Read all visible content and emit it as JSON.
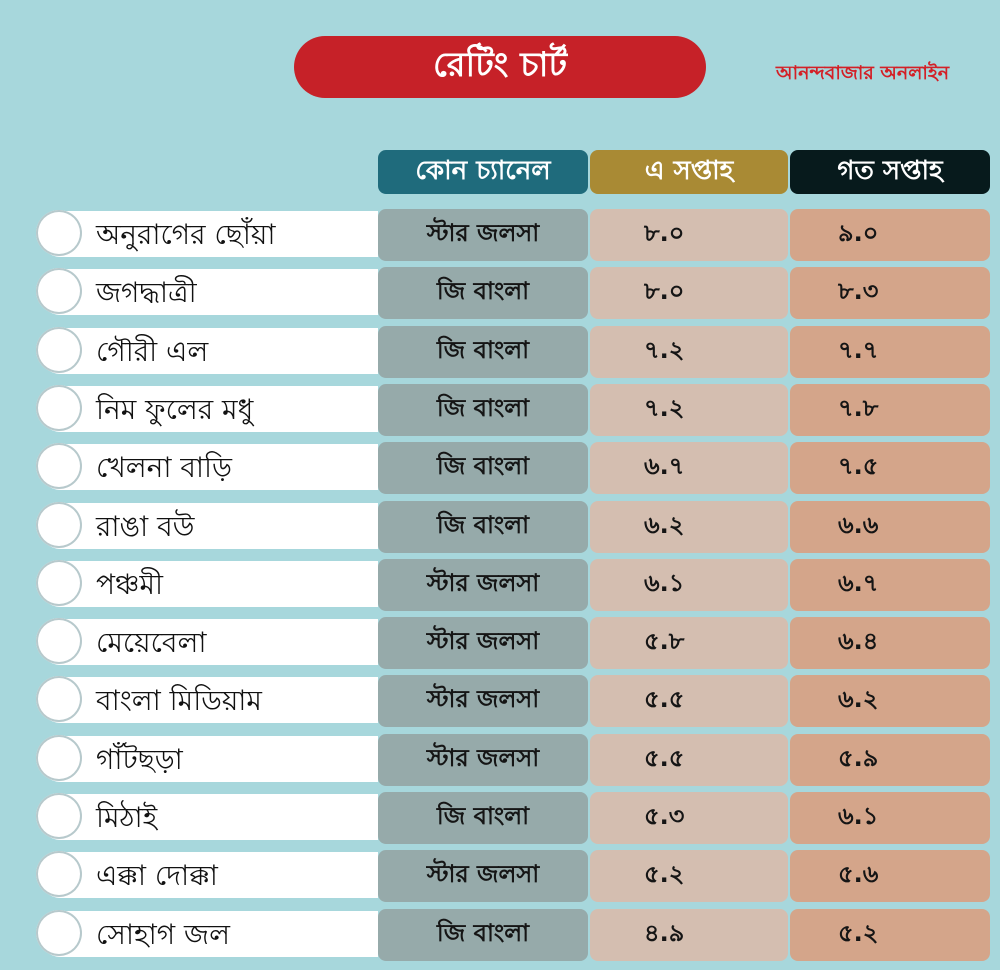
{
  "title": "রেটিং চার্ট",
  "brand": "আনন্দবাজার অনলাইন",
  "colors": {
    "background": "#a7d7dc",
    "title_pill": "#c62128",
    "brand_text": "#d32027",
    "header_channel": "#1f6b7c",
    "header_this_week": "#a98a34",
    "header_last_week": "#071a1c",
    "cell_channel": "#96aaaa",
    "cell_this_week": "#d4beb0",
    "cell_last_week": "#d4a58a"
  },
  "chart_data": {
    "type": "table",
    "columns": [
      "কোন চ্যানেল",
      "এ সপ্তাহ",
      "গত সপ্তাহ"
    ],
    "rows": [
      {
        "name": "অনুরাগের ছোঁয়া",
        "channel": "স্টার জলসা",
        "this_week": "৮.০",
        "last_week": "৯.০"
      },
      {
        "name": "জগদ্ধাত্রী",
        "channel": "জি বাংলা",
        "this_week": "৮.০",
        "last_week": "৮.৩"
      },
      {
        "name": "গৌরী এল",
        "channel": "জি বাংলা",
        "this_week": "৭.২",
        "last_week": "৭.৭"
      },
      {
        "name": "নিম ফুলের মধু",
        "channel": "জি বাংলা",
        "this_week": "৭.২",
        "last_week": "৭.৮"
      },
      {
        "name": "খেলনা বাড়ি",
        "channel": "জি বাংলা",
        "this_week": "৬.৭",
        "last_week": "৭.৫"
      },
      {
        "name": "রাঙা বউ",
        "channel": "জি বাংলা",
        "this_week": "৬.২",
        "last_week": "৬.৬"
      },
      {
        "name": "পঞ্চমী",
        "channel": "স্টার জলসা",
        "this_week": "৬.১",
        "last_week": "৬.৭"
      },
      {
        "name": "মেয়েবেলা",
        "channel": "স্টার জলসা",
        "this_week": "৫.৮",
        "last_week": "৬.৪"
      },
      {
        "name": "বাংলা মিডিয়াম",
        "channel": "স্টার জলসা",
        "this_week": "৫.৫",
        "last_week": "৬.২"
      },
      {
        "name": "গাঁটছড়া",
        "channel": "স্টার জলসা",
        "this_week": "৫.৫",
        "last_week": "৫.৯"
      },
      {
        "name": "মিঠাই",
        "channel": "জি বাংলা",
        "this_week": "৫.৩",
        "last_week": "৬.১"
      },
      {
        "name": "এক্কা দোক্কা",
        "channel": "স্টার জলসা",
        "this_week": "৫.২",
        "last_week": "৫.৬"
      },
      {
        "name": "সোহাগ জল",
        "channel": "জি বাংলা",
        "this_week": "৪.৯",
        "last_week": "৫.২"
      }
    ]
  }
}
